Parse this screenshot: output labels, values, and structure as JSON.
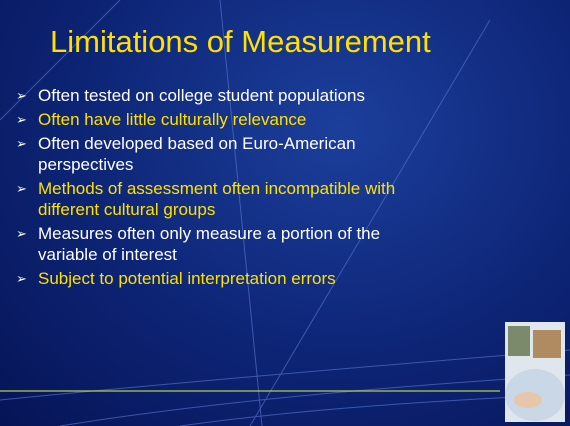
{
  "slide": {
    "title": "Limitations of Measurement",
    "bullets": [
      {
        "lines": [
          "Often tested on college student populations"
        ],
        "highlight": false
      },
      {
        "lines": [
          "Often have little culturally relevance"
        ],
        "highlight": true
      },
      {
        "lines": [
          "Often developed based on Euro-American",
          "perspectives"
        ],
        "highlight": false
      },
      {
        "lines": [
          "Methods of assessment often incompatible with",
          "different cultural groups"
        ],
        "highlight": true
      },
      {
        "lines": [
          "Measures often only measure a portion of the",
          "variable of interest"
        ],
        "highlight": false
      },
      {
        "lines": [
          "Subject to potential interpretation errors"
        ],
        "highlight": true
      }
    ]
  }
}
